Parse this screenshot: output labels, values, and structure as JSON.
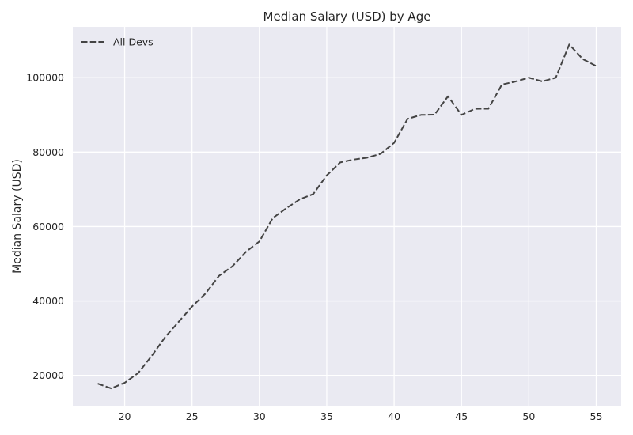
{
  "chart_data": {
    "type": "line",
    "title": "Median Salary (USD) by Age",
    "xlabel": "",
    "ylabel": "Median Salary (USD)",
    "xlim": [
      16.15,
      56.85
    ],
    "ylim": [
      11850,
      113650
    ],
    "xticks": [
      20,
      25,
      30,
      35,
      40,
      45,
      50,
      55
    ],
    "yticks": [
      20000,
      40000,
      60000,
      80000,
      100000
    ],
    "grid": true,
    "legend": {
      "placement": "top-left",
      "entries": [
        "All Devs"
      ]
    },
    "colors": {
      "background": "#EAEAF2",
      "grid": "#FFFFFF",
      "line": "#444444"
    },
    "series": [
      {
        "name": "All Devs",
        "style": "dashed",
        "x": [
          18,
          19,
          20,
          21,
          22,
          23,
          24,
          25,
          26,
          27,
          28,
          29,
          30,
          31,
          32,
          33,
          34,
          35,
          36,
          37,
          38,
          39,
          40,
          41,
          42,
          43,
          44,
          45,
          46,
          47,
          48,
          49,
          50,
          51,
          52,
          53,
          54,
          55
        ],
        "y": [
          17784,
          16500,
          18012,
          20628,
          25206,
          30252,
          34368,
          38496,
          42000,
          46752,
          49320,
          53200,
          56000,
          62316,
          64928,
          67317,
          68748,
          73752,
          77232,
          78000,
          78508,
          79536,
          82488,
          88935,
          90000,
          90056,
          95000,
          90000,
          91633,
          91660,
          98150,
          98964,
          100000,
          98988,
          100000,
          108923,
          105000,
          103117
        ]
      }
    ]
  }
}
